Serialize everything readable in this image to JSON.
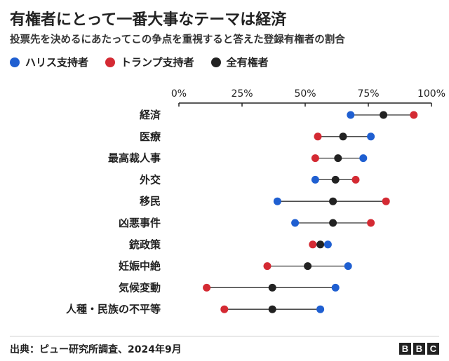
{
  "header": {
    "title": "有権者にとって一番大事なテーマは経済",
    "subtitle": "投票先を決めるにあたってこの争点を重視すると答えた登録有権者の割合"
  },
  "legend": [
    {
      "label": "ハリス支持者",
      "color": "#1f5fd1"
    },
    {
      "label": "トランプ支持者",
      "color": "#d42a33"
    },
    {
      "label": "全有権者",
      "color": "#222222"
    }
  ],
  "chart_data": {
    "type": "dot",
    "axis_ticks": [
      "0%",
      "25%",
      "50%",
      "75%",
      "100%"
    ],
    "xlim": [
      0,
      100
    ],
    "categories": [
      "経済",
      "医療",
      "最高裁人事",
      "外交",
      "移民",
      "凶悪事件",
      "銃政策",
      "妊娠中絶",
      "気候変動",
      "人種・民族の不平等"
    ],
    "series": [
      {
        "name": "ハリス支持者",
        "color": "#1f5fd1",
        "values": [
          68,
          76,
          73,
          54,
          39,
          46,
          59,
          67,
          62,
          56
        ]
      },
      {
        "name": "トランプ支持者",
        "color": "#d42a33",
        "values": [
          93,
          55,
          54,
          70,
          82,
          76,
          53,
          35,
          11,
          18
        ]
      },
      {
        "name": "全有権者",
        "color": "#222222",
        "values": [
          81,
          65,
          63,
          62,
          61,
          61,
          56,
          51,
          37,
          37
        ]
      }
    ]
  },
  "footer": {
    "source": "出典：ピュー研究所調査、2024年9月",
    "logo_letters": [
      "B",
      "B",
      "C"
    ]
  }
}
